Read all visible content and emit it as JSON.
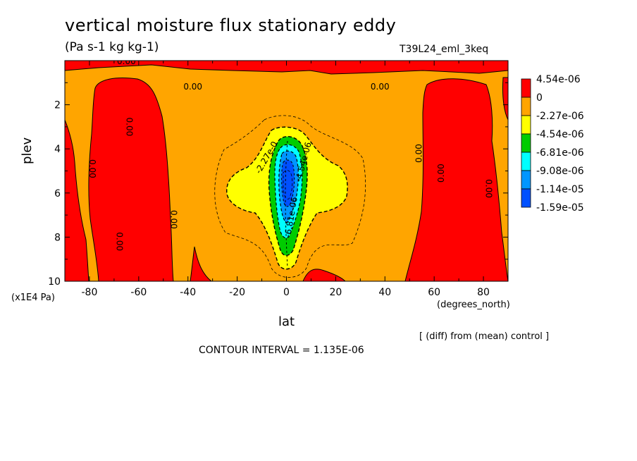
{
  "chart_data": {
    "type": "heatmap",
    "title": "vertical moisture flux stationary eddy",
    "units_label": "(Pa s-1 kg kg-1)",
    "run_label": "T39L24_eml_3keq",
    "xlabel": "lat",
    "ylabel": "plev",
    "x_units": "(degrees_north)",
    "y_units": "(x1E4 Pa)",
    "xlim": [
      -90,
      90
    ],
    "ylim": [
      0,
      10
    ],
    "y_inverted": true,
    "x_ticks": [
      -80,
      -60,
      -40,
      -20,
      0,
      20,
      40,
      60,
      80
    ],
    "x_tick_labels": [
      "-80",
      "-60",
      "-40",
      "-20",
      "0",
      "20",
      "40",
      "60",
      "80"
    ],
    "y_ticks": [
      2,
      4,
      6,
      8,
      10
    ],
    "y_tick_labels": [
      "2",
      "4",
      "6",
      "8",
      "10"
    ],
    "colorbar": {
      "labels": [
        "4.54e-06",
        "0",
        "-2.27e-06",
        "-4.54e-06",
        "-6.81e-06",
        "-9.08e-06",
        "-1.14e-05",
        "-1.59e-05"
      ],
      "colors": [
        "#ff0000",
        "#ffa500",
        "#ffff00",
        "#00cc00",
        "#00ffff",
        "#0096ff",
        "#0050ff"
      ]
    },
    "contour_labels": [
      {
        "text": "0.00",
        "lat": -65,
        "plev": 0.05,
        "rotate": 0
      },
      {
        "text": "0.00",
        "lat": -38,
        "plev": 1.2,
        "rotate": 0
      },
      {
        "text": "0.00",
        "lat": 38,
        "plev": 1.2,
        "rotate": 0
      },
      {
        "text": "0.00",
        "lat": -64,
        "plev": 3.0,
        "rotate": 90
      },
      {
        "text": "0.00",
        "lat": -79,
        "plev": 4.9,
        "rotate": 90
      },
      {
        "text": "0.00",
        "lat": -46,
        "plev": 7.2,
        "rotate": 90
      },
      {
        "text": "0.00",
        "lat": -68,
        "plev": 8.2,
        "rotate": 90
      },
      {
        "text": "0.00",
        "lat": 54,
        "plev": 4.2,
        "rotate": -90
      },
      {
        "text": "0.00",
        "lat": 63,
        "plev": 5.1,
        "rotate": -90
      },
      {
        "text": "0.00",
        "lat": 82,
        "plev": 5.8,
        "rotate": 90
      },
      {
        "text": "-2.27e-0",
        "lat": -8,
        "plev": 4.4,
        "rotate": -60
      },
      {
        "text": "-4.54e-06",
        "lat": 7,
        "plev": 4.6,
        "rotate": -75
      },
      {
        "text": "-6.81e-06",
        "lat": 2,
        "plev": 7.1,
        "rotate": -80
      }
    ],
    "contour_interval_text": "CONTOUR INTERVAL = 1.135E-06",
    "diff_note": "[ (diff) from (mean) control ]"
  }
}
